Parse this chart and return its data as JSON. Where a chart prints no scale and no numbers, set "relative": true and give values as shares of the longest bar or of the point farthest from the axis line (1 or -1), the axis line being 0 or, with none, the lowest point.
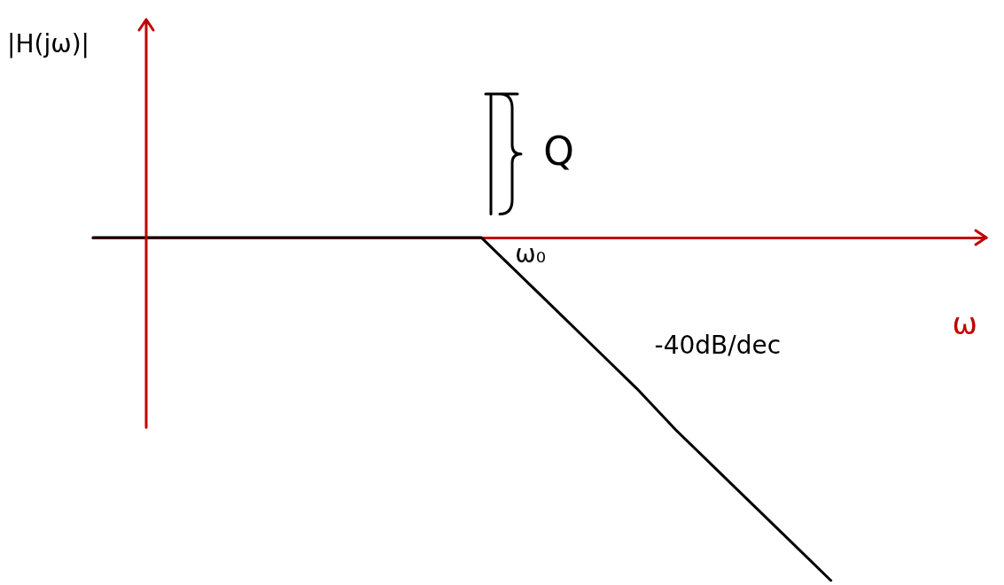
{
  "chart_data": {
    "type": "line",
    "relative": true,
    "xlabel": "ω",
    "categories": [
      null,
      null,
      null,
      null,
      null,
      null,
      null,
      null,
      null,
      null,
      null,
      null,
      null,
      null,
      null,
      null,
      null,
      null,
      null,
      null,
      null,
      null,
      null,
      null
    ],
    "series": [
      {
        "color": "#000000",
        "values": [
          0,
          0,
          0,
          0,
          0,
          0,
          0,
          0,
          0,
          0,
          0,
          -0.11,
          -0.22,
          -0.33,
          -0.44,
          -0.56,
          -0.67,
          -0.78,
          -0.89,
          -1,
          null,
          null,
          null,
          null
        ]
      }
    ],
    "annotations": [
      "ω₀",
      "Q",
      "-40dB/dec",
      "|H(jω)|"
    ],
    "marker": "none",
    "line_style": "solid",
    "grid": false
  }
}
